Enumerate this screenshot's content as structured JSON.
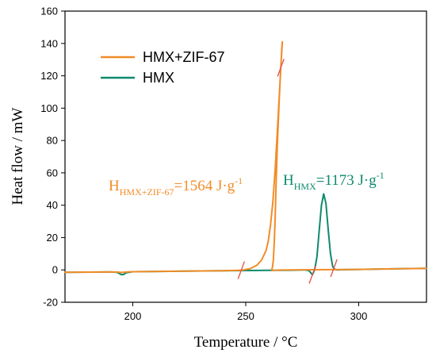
{
  "chart_data": {
    "type": "line",
    "xlabel": "Temperature / °C",
    "ylabel": "Heat flow / mW",
    "xlim": [
      170,
      330
    ],
    "ylim": [
      -20,
      160
    ],
    "xticks": [
      200,
      250,
      300
    ],
    "yticks": [
      -20,
      0,
      20,
      40,
      60,
      80,
      100,
      120,
      140,
      160
    ],
    "grid": false,
    "legend_position": "top-left",
    "series": [
      {
        "name": "HMX+ZIF-67",
        "color": "#f28c28",
        "x": [
          170,
          190,
          193,
          195,
          197,
          200,
          220,
          240,
          248,
          252,
          255,
          257,
          259,
          260,
          261,
          262,
          263,
          264,
          265,
          265.5,
          266,
          266.2,
          265.6,
          264.8,
          264,
          263.4,
          263,
          262.6,
          262.2,
          261.8,
          261.5,
          261.8,
          263,
          265,
          270,
          280,
          300,
          330
        ],
        "y": [
          -1.5,
          -1.2,
          -1.3,
          -1.6,
          -1.3,
          -1.1,
          -0.8,
          -0.5,
          -0.2,
          0.8,
          3,
          6,
          12,
          18,
          28,
          42,
          62,
          86,
          112,
          125,
          138,
          141,
          128,
          105,
          78,
          52,
          32,
          16,
          6,
          1.5,
          0,
          -0.4,
          -0.2,
          -0.1,
          0,
          0.1,
          0.3,
          1
        ]
      },
      {
        "name": "HMX",
        "color": "#0e8a6d",
        "x": [
          170,
          190,
          193,
          195,
          196,
          197,
          200,
          220,
          240,
          260,
          270,
          276,
          278,
          279.5,
          280.5,
          281.5,
          282.5,
          283.5,
          284.5,
          285.5,
          286.5,
          287.5,
          288.5,
          289.5,
          290.5,
          292,
          300,
          320,
          330
        ],
        "y": [
          -1.5,
          -1.2,
          -1.5,
          -3,
          -2.8,
          -1.8,
          -1.1,
          -0.8,
          -0.5,
          -0.3,
          -0.2,
          0,
          -0.5,
          -3,
          0,
          8,
          24,
          40,
          47,
          41,
          25,
          10,
          2,
          0.2,
          0,
          0.1,
          0.3,
          0.8,
          1
        ]
      }
    ],
    "annotations": [
      {
        "main": "H",
        "sub": "HMX+ZIF-67",
        "value": "=1564 J·g",
        "sup": "-1",
        "color": "#f28c28"
      },
      {
        "main": "H",
        "sub": "HMX",
        "value": "=1173 J·g",
        "sup": "-1",
        "color": "#0e8a6d"
      }
    ],
    "integration_limits": [
      {
        "x": 248,
        "series": 0
      },
      {
        "x": 265.5,
        "series": 0
      },
      {
        "x": 279.5,
        "series": 1
      },
      {
        "x": 289,
        "series": 1
      }
    ]
  }
}
